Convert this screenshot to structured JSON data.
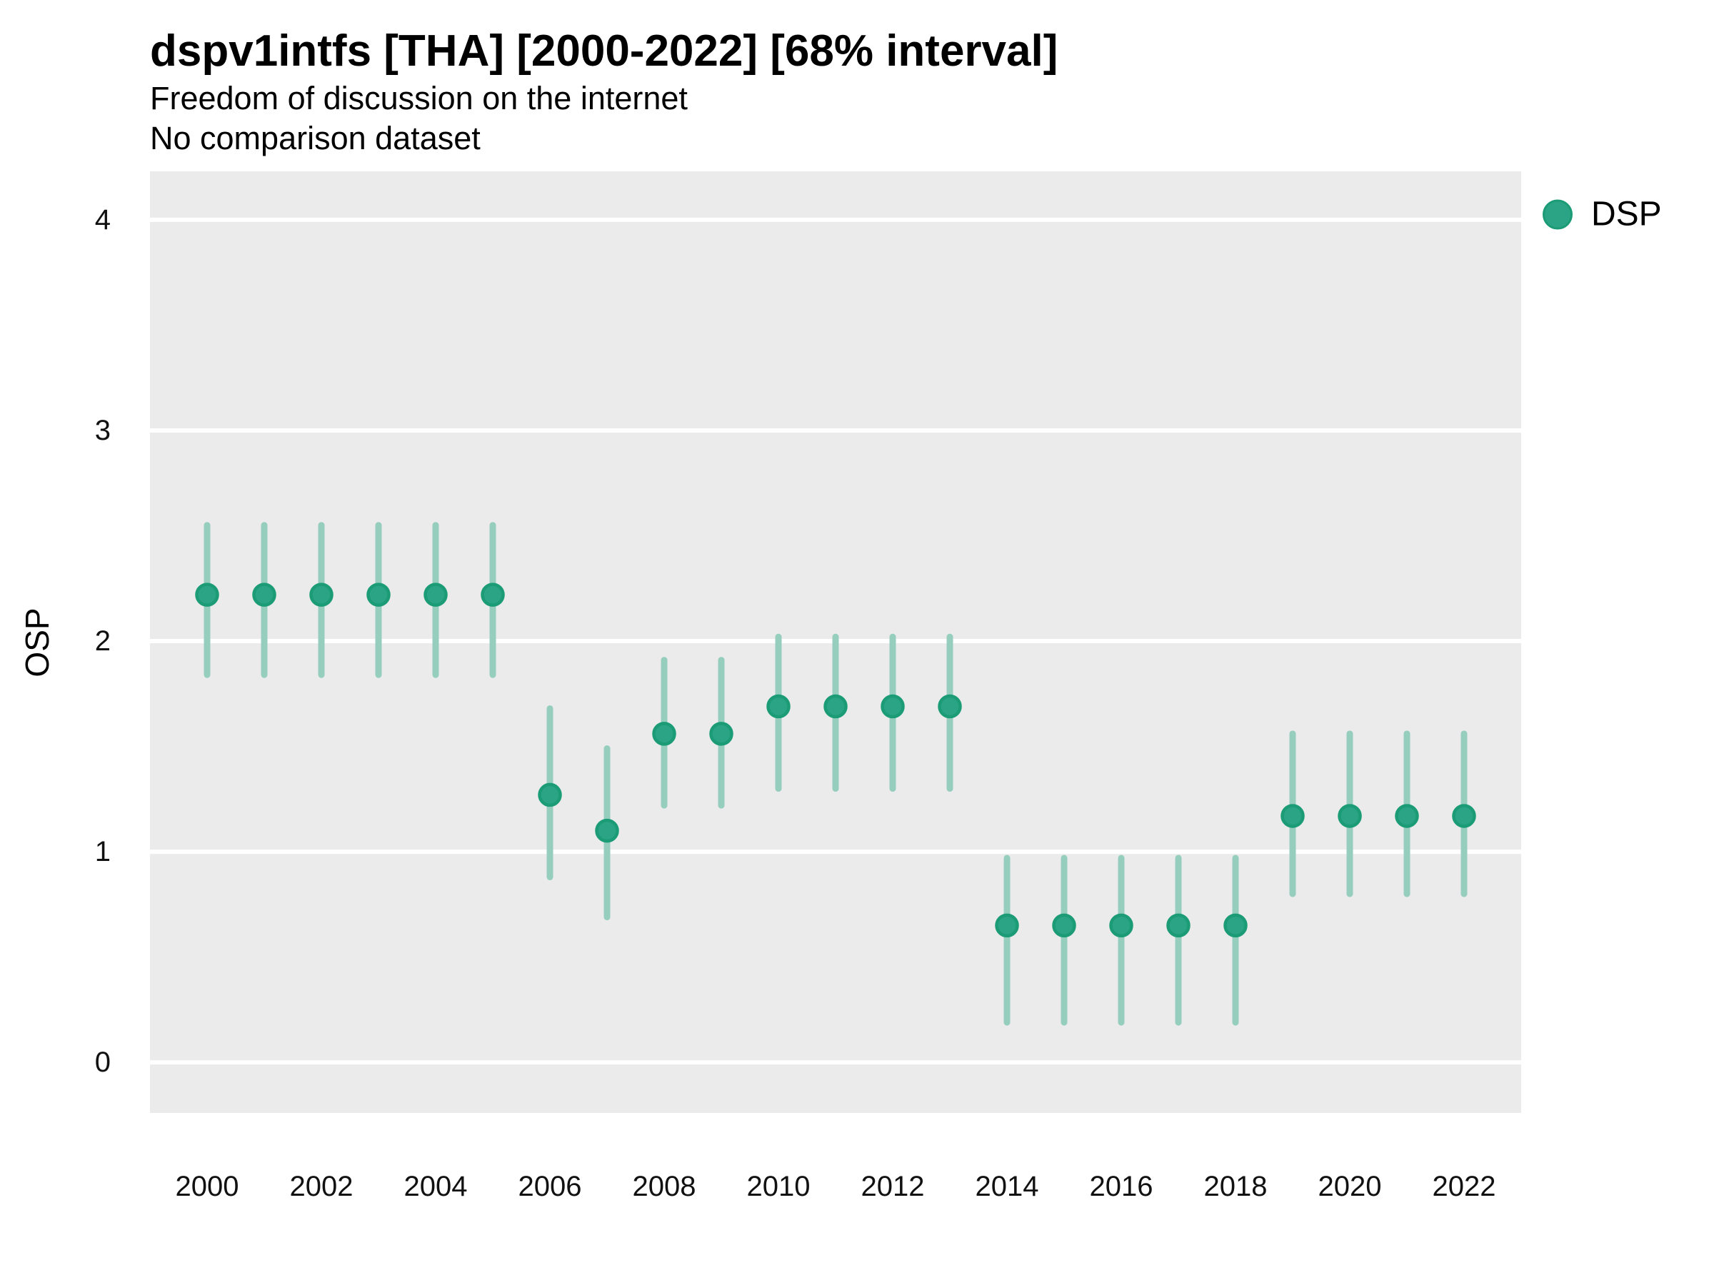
{
  "chart": {
    "title": "dspv1intfs [THA] [2000-2022] [68% interval]",
    "subtitle": "Freedom of discussion on the internet",
    "subtitle2": "No comparison dataset",
    "ylabel": "OSP",
    "legend_label": "DSP"
  },
  "colors": {
    "point_fill": "#2AA485",
    "point_stroke": "#1B9C76",
    "interval_bar": "#96CEBE",
    "panel_background": "#EBEBEB",
    "gridline": "#FFFFFF",
    "text": "#000000"
  },
  "chart_data": {
    "type": "scatter",
    "title": "dspv1intfs [THA] [2000-2022] [68% interval]",
    "subtitle": "Freedom of discussion on the internet",
    "subtitle2": "No comparison dataset",
    "xlabel": "",
    "ylabel": "OSP",
    "legend_entries": [
      "DSP"
    ],
    "legend_position": "right",
    "grid": "major-y-white-on-gray",
    "interval_label": "68% interval",
    "country": "THA",
    "xlim": [
      1999,
      2023
    ],
    "ylim": [
      -0.24,
      4.23
    ],
    "y_ticks": [
      0,
      1,
      2,
      3,
      4
    ],
    "x_ticks": [
      2000,
      2002,
      2004,
      2006,
      2008,
      2010,
      2012,
      2014,
      2016,
      2018,
      2020,
      2022
    ],
    "series": [
      {
        "name": "DSP",
        "points": [
          {
            "year": 2000,
            "est": 2.22,
            "lo": 1.84,
            "hi": 2.55
          },
          {
            "year": 2001,
            "est": 2.22,
            "lo": 1.84,
            "hi": 2.55
          },
          {
            "year": 2002,
            "est": 2.22,
            "lo": 1.84,
            "hi": 2.55
          },
          {
            "year": 2003,
            "est": 2.22,
            "lo": 1.84,
            "hi": 2.55
          },
          {
            "year": 2004,
            "est": 2.22,
            "lo": 1.84,
            "hi": 2.55
          },
          {
            "year": 2005,
            "est": 2.22,
            "lo": 1.84,
            "hi": 2.55
          },
          {
            "year": 2006,
            "est": 1.27,
            "lo": 0.88,
            "hi": 1.68
          },
          {
            "year": 2007,
            "est": 1.1,
            "lo": 0.69,
            "hi": 1.49
          },
          {
            "year": 2008,
            "est": 1.56,
            "lo": 1.22,
            "hi": 1.91
          },
          {
            "year": 2009,
            "est": 1.56,
            "lo": 1.22,
            "hi": 1.91
          },
          {
            "year": 2010,
            "est": 1.69,
            "lo": 1.3,
            "hi": 2.02
          },
          {
            "year": 2011,
            "est": 1.69,
            "lo": 1.3,
            "hi": 2.02
          },
          {
            "year": 2012,
            "est": 1.69,
            "lo": 1.3,
            "hi": 2.02
          },
          {
            "year": 2013,
            "est": 1.69,
            "lo": 1.3,
            "hi": 2.02
          },
          {
            "year": 2014,
            "est": 0.65,
            "lo": 0.19,
            "hi": 0.97
          },
          {
            "year": 2015,
            "est": 0.65,
            "lo": 0.19,
            "hi": 0.97
          },
          {
            "year": 2016,
            "est": 0.65,
            "lo": 0.19,
            "hi": 0.97
          },
          {
            "year": 2017,
            "est": 0.65,
            "lo": 0.19,
            "hi": 0.97
          },
          {
            "year": 2018,
            "est": 0.65,
            "lo": 0.19,
            "hi": 0.97
          },
          {
            "year": 2019,
            "est": 1.17,
            "lo": 0.8,
            "hi": 1.56
          },
          {
            "year": 2020,
            "est": 1.17,
            "lo": 0.8,
            "hi": 1.56
          },
          {
            "year": 2021,
            "est": 1.17,
            "lo": 0.8,
            "hi": 1.56
          },
          {
            "year": 2022,
            "est": 1.17,
            "lo": 0.8,
            "hi": 1.56
          }
        ]
      }
    ]
  }
}
